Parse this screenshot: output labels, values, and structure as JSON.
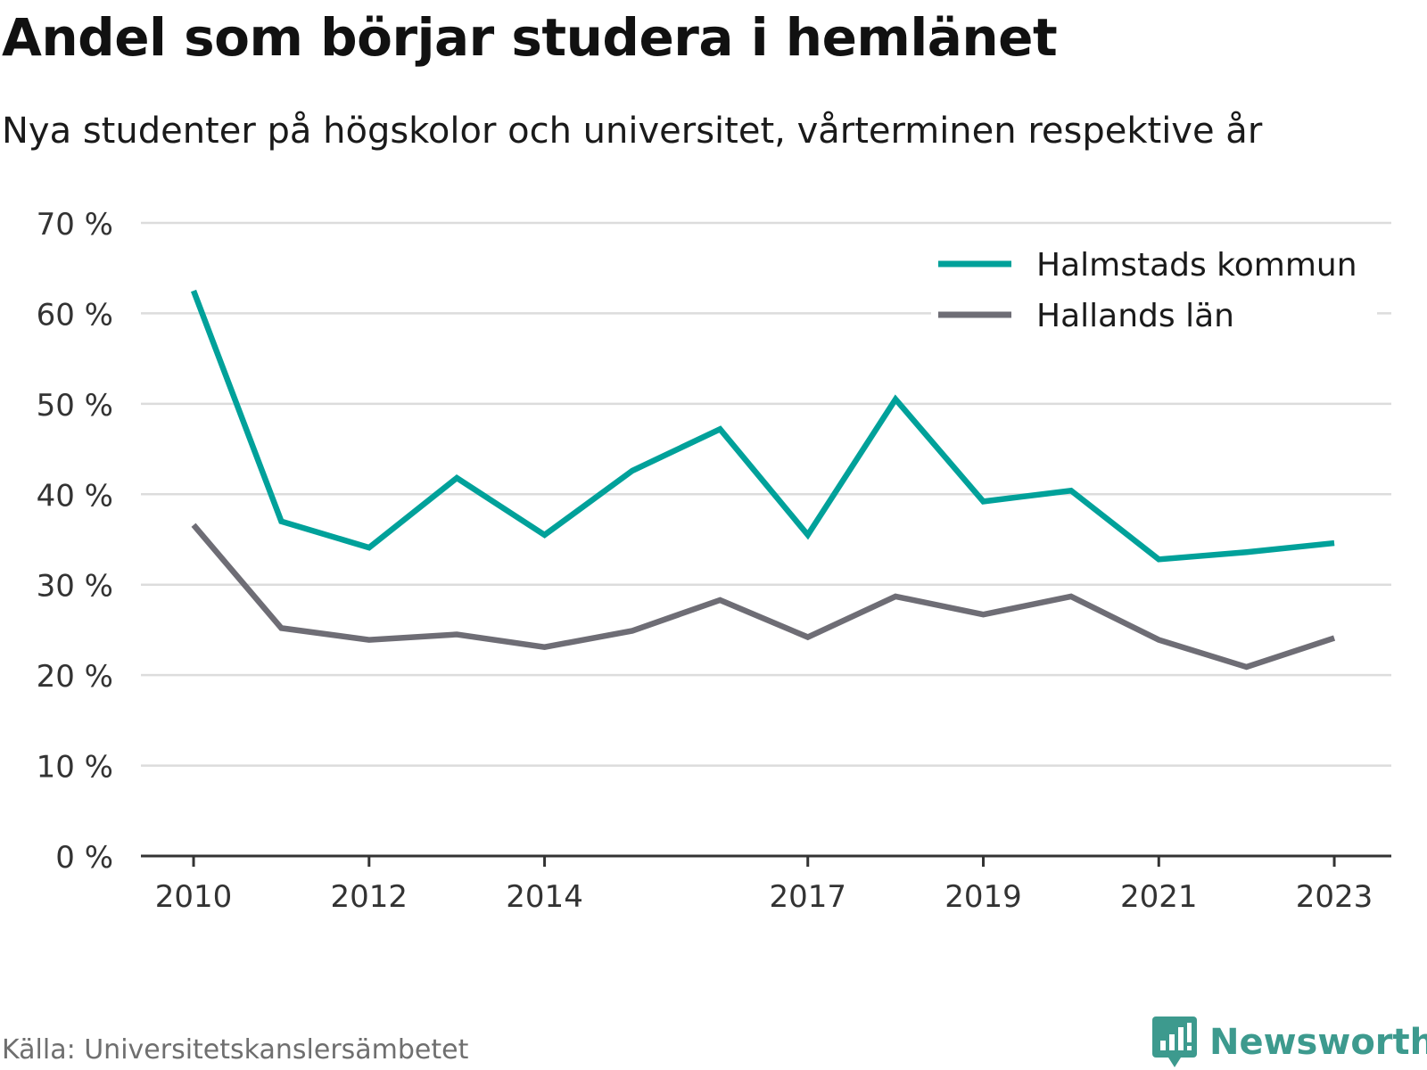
{
  "header": {
    "title": "Andel som börjar studera i hemlänet",
    "subtitle": "Nya studenter på högskolor och universitet, vårterminen respektive år"
  },
  "footer": {
    "source": "Källa: Universitetskanslersämbetet",
    "brand": "Newsworthy",
    "brand_icon": "chart-bubble-icon",
    "brand_color": "#3d9a8e"
  },
  "chart_data": {
    "type": "line",
    "title": "Andel som börjar studera i hemlänet",
    "subtitle": "Nya studenter på högskolor och universitet, vårterminen respektive år",
    "xlabel": "",
    "ylabel": "",
    "x": [
      2010,
      2011,
      2012,
      2013,
      2014,
      2015,
      2016,
      2017,
      2018,
      2019,
      2020,
      2021,
      2022,
      2023
    ],
    "x_tick_values": [
      2010,
      2012,
      2014,
      2017,
      2019,
      2021,
      2023
    ],
    "x_tick_labels": [
      "2010",
      "2012",
      "2014",
      "2017",
      "2019",
      "2021",
      "2023"
    ],
    "y_tick_values": [
      0,
      10,
      20,
      30,
      40,
      50,
      60,
      70
    ],
    "y_tick_labels": [
      "0 %",
      "10 %",
      "20 %",
      "30 %",
      "40 %",
      "50 %",
      "60 %",
      "70 %"
    ],
    "xlim": [
      2009.4,
      2023.65
    ],
    "ylim": [
      0,
      70
    ],
    "grid": true,
    "legend_position": "top-right",
    "series": [
      {
        "name": "Halmstads kommun",
        "color": "#00a19a",
        "values": [
          62.5,
          37,
          34.1,
          41.8,
          35.5,
          42.6,
          47.2,
          35.5,
          50.5,
          39.2,
          40.4,
          32.8,
          33.6,
          34.6
        ]
      },
      {
        "name": "Hallands län",
        "color": "#6e6d75",
        "values": [
          36.6,
          25.2,
          23.9,
          24.5,
          23.1,
          24.9,
          28.3,
          24.2,
          28.7,
          26.7,
          28.7,
          23.9,
          20.9,
          24.1
        ]
      }
    ]
  }
}
